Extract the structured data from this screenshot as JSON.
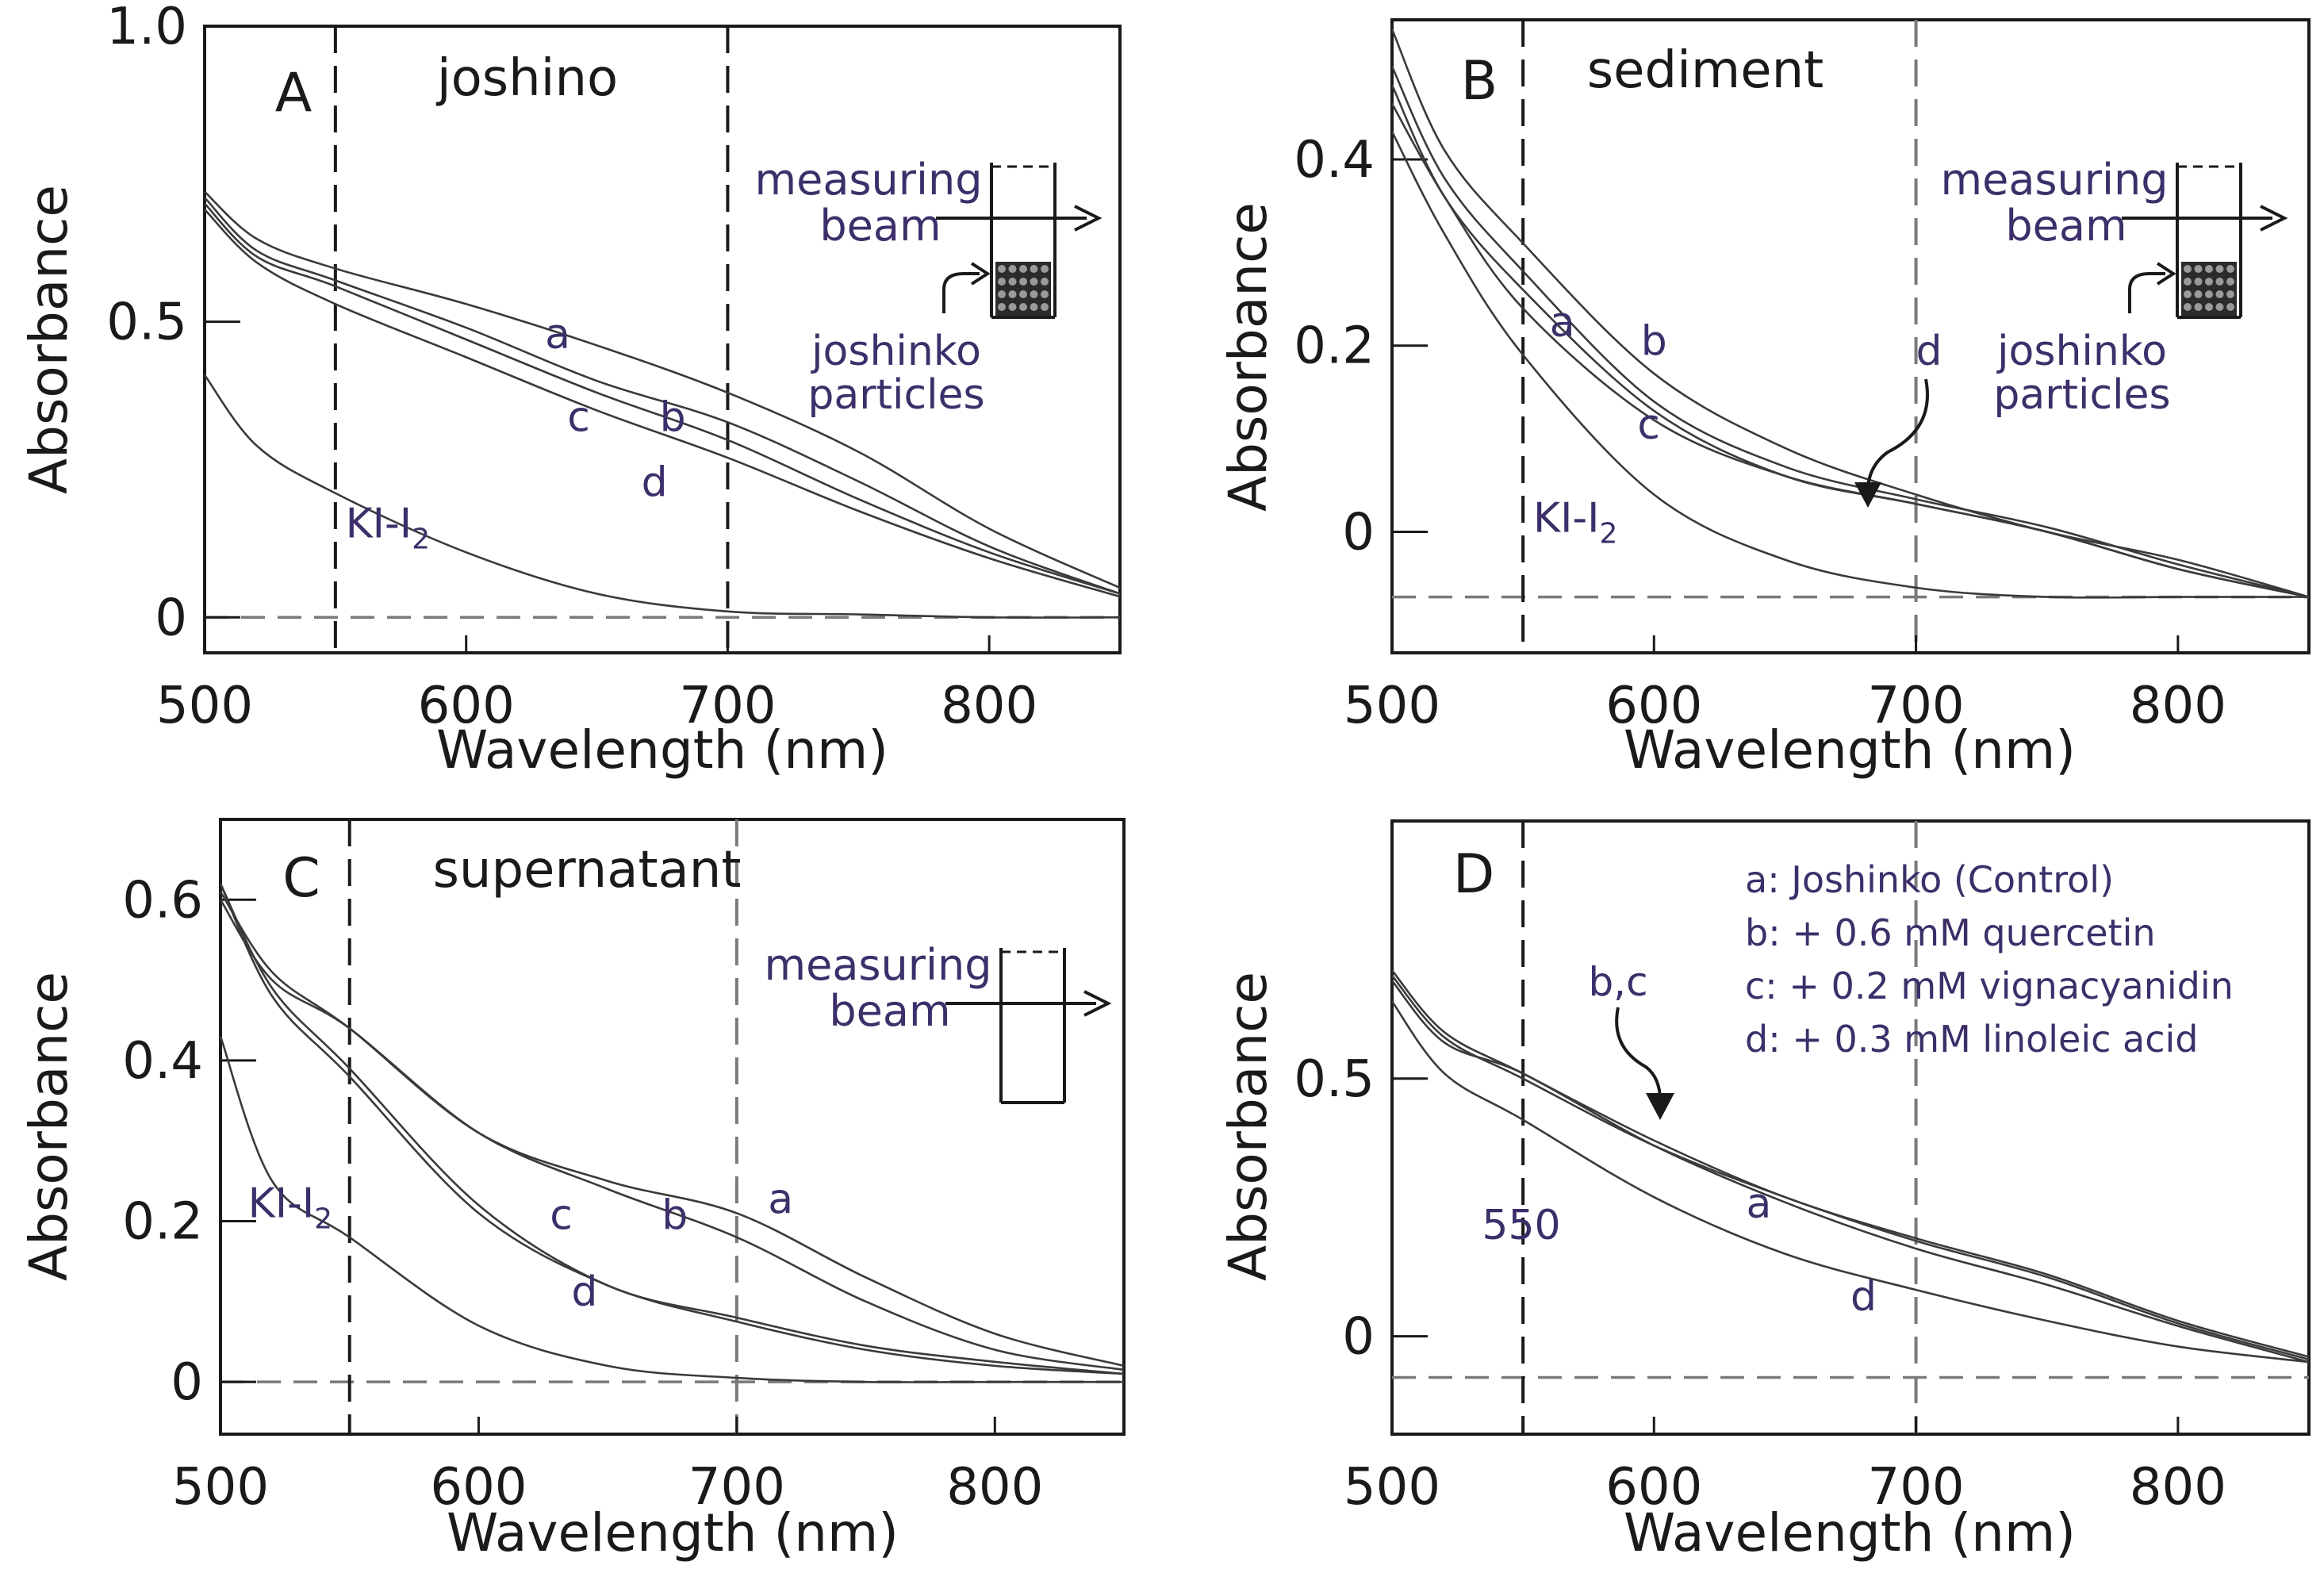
{
  "colors": {
    "ink": "#1a1a1a",
    "curve": "#3a3a3a",
    "annotation": "#3c2f6a",
    "guide": "#7a7a7a"
  },
  "chart_data": [
    {
      "type": "line",
      "panel_letter": "A",
      "title": "joshino",
      "xlabel": "Wavelength (nm)",
      "ylabel": "Absorbance",
      "xlim": [
        500,
        850
      ],
      "ylim": [
        -0.06,
        1.0
      ],
      "xticks": [
        500,
        600,
        700,
        800
      ],
      "yticks": [
        0,
        0.5,
        1.0
      ],
      "ytick_labels": [
        "0",
        "0.5",
        "1.0"
      ],
      "zero_line": 0,
      "vlines": [
        550,
        700
      ],
      "inset": {
        "type": "cuvette-particles",
        "beam_label": [
          "measuring",
          "beam"
        ],
        "particle_label": [
          "joshinko",
          "particles"
        ]
      },
      "series": [
        {
          "name": "a",
          "label": "a",
          "x": [
            500,
            520,
            550,
            600,
            650,
            700,
            750,
            800,
            850
          ],
          "y": [
            0.72,
            0.64,
            0.59,
            0.53,
            0.46,
            0.38,
            0.28,
            0.15,
            0.05
          ]
        },
        {
          "name": "b",
          "label": "b",
          "x": [
            500,
            520,
            550,
            600,
            650,
            700,
            750,
            800,
            850
          ],
          "y": [
            0.71,
            0.62,
            0.57,
            0.49,
            0.4,
            0.33,
            0.23,
            0.12,
            0.04
          ]
        },
        {
          "name": "c",
          "label": "c",
          "x": [
            500,
            520,
            550,
            600,
            650,
            700,
            750,
            800,
            850
          ],
          "y": [
            0.7,
            0.61,
            0.56,
            0.47,
            0.38,
            0.3,
            0.2,
            0.11,
            0.04
          ]
        },
        {
          "name": "d",
          "label": "d",
          "x": [
            500,
            520,
            550,
            600,
            650,
            700,
            750,
            800,
            850
          ],
          "y": [
            0.69,
            0.6,
            0.53,
            0.44,
            0.35,
            0.27,
            0.18,
            0.1,
            0.035
          ]
        },
        {
          "name": "KI-I2",
          "label": "KI-I",
          "label_sub": "2",
          "x": [
            500,
            520,
            550,
            600,
            650,
            700,
            750,
            800,
            850
          ],
          "y": [
            0.41,
            0.29,
            0.21,
            0.11,
            0.04,
            0.01,
            0.005,
            0.0,
            0.0
          ]
        }
      ],
      "labels": [
        {
          "text": "a",
          "x": 635,
          "y": 0.455
        },
        {
          "text": "b",
          "x": 679,
          "y": 0.315
        },
        {
          "text": "c",
          "x": 643,
          "y": 0.315
        },
        {
          "text": "d",
          "x": 672,
          "y": 0.205
        },
        {
          "text": "KI-I",
          "sub": "2",
          "x": 570,
          "y": 0.135
        }
      ]
    },
    {
      "type": "line",
      "panel_letter": "B",
      "title": "sediment",
      "xlabel": "Wavelength (nm)",
      "ylabel": "Absorbance",
      "xlim": [
        500,
        850
      ],
      "ylim": [
        -0.13,
        0.55
      ],
      "xticks": [
        500,
        600,
        700,
        800
      ],
      "yticks": [
        0,
        0.2,
        0.4
      ],
      "ytick_labels": [
        "0",
        "0.2",
        "0.4"
      ],
      "zero_line": -0.07,
      "vlines": [
        550,
        700
      ],
      "inset": {
        "type": "cuvette-particles",
        "beam_label": [
          "measuring",
          "beam"
        ],
        "particle_label": [
          "joshinko",
          "particles"
        ]
      },
      "arrow_label": "d",
      "series": [
        {
          "name": "a",
          "label": "a",
          "x": [
            500,
            520,
            550,
            600,
            650,
            700,
            750,
            800,
            850
          ],
          "y": [
            0.46,
            0.36,
            0.24,
            0.12,
            0.06,
            0.03,
            0.0,
            -0.04,
            -0.07
          ]
        },
        {
          "name": "b",
          "label": "b",
          "x": [
            500,
            520,
            550,
            600,
            650,
            700,
            750,
            800,
            850
          ],
          "y": [
            0.54,
            0.41,
            0.31,
            0.17,
            0.09,
            0.04,
            0.0,
            -0.03,
            -0.07
          ]
        },
        {
          "name": "c",
          "label": "c",
          "x": [
            500,
            520,
            550,
            600,
            650,
            700,
            750,
            800,
            850
          ],
          "y": [
            0.48,
            0.36,
            0.26,
            0.13,
            0.06,
            0.03,
            0.0,
            -0.04,
            -0.07
          ]
        },
        {
          "name": "d",
          "label": "d",
          "x": [
            500,
            520,
            550,
            600,
            650,
            700,
            750,
            800,
            850
          ],
          "y": [
            0.5,
            0.38,
            0.28,
            0.14,
            0.07,
            0.035,
            0.005,
            -0.035,
            -0.07
          ]
        },
        {
          "name": "KI-I2",
          "label": "KI-I",
          "label_sub": "2",
          "x": [
            500,
            520,
            550,
            600,
            650,
            700,
            750,
            800,
            850
          ],
          "y": [
            0.43,
            0.32,
            0.19,
            0.04,
            -0.03,
            -0.06,
            -0.07,
            -0.07,
            -0.07
          ]
        }
      ],
      "labels": [
        {
          "text": "a",
          "x": 565,
          "y": 0.21
        },
        {
          "text": "b",
          "x": 600,
          "y": 0.19
        },
        {
          "text": "c",
          "x": 598,
          "y": 0.1
        },
        {
          "text": "KI-I",
          "sub": "2",
          "x": 570,
          "y": 0.0
        }
      ]
    },
    {
      "type": "line",
      "panel_letter": "C",
      "title": "supernatant",
      "xlabel": "Wavelength (nm)",
      "ylabel": "Absorbance",
      "xlim": [
        500,
        850
      ],
      "ylim": [
        -0.065,
        0.7
      ],
      "xticks": [
        500,
        600,
        700,
        800
      ],
      "yticks": [
        0,
        0.2,
        0.4,
        0.6
      ],
      "ytick_labels": [
        "0",
        "0.2",
        "0.4",
        "0.6"
      ],
      "zero_line": 0,
      "vlines": [
        550,
        700
      ],
      "inset": {
        "type": "cuvette-empty",
        "beam_label": [
          "measuring",
          "beam"
        ]
      },
      "series": [
        {
          "name": "a",
          "label": "a",
          "x": [
            500,
            520,
            550,
            600,
            650,
            700,
            750,
            800,
            850
          ],
          "y": [
            0.61,
            0.51,
            0.44,
            0.31,
            0.25,
            0.21,
            0.13,
            0.06,
            0.02
          ]
        },
        {
          "name": "b",
          "label": "b",
          "x": [
            500,
            520,
            550,
            600,
            650,
            700,
            750,
            800,
            850
          ],
          "y": [
            0.6,
            0.5,
            0.44,
            0.31,
            0.24,
            0.18,
            0.1,
            0.04,
            0.015
          ]
        },
        {
          "name": "c",
          "label": "c",
          "x": [
            500,
            520,
            550,
            600,
            650,
            700,
            750,
            800,
            850
          ],
          "y": [
            0.62,
            0.49,
            0.39,
            0.22,
            0.12,
            0.08,
            0.045,
            0.025,
            0.01
          ]
        },
        {
          "name": "d",
          "label": "d",
          "x": [
            500,
            520,
            550,
            600,
            650,
            700,
            750,
            800,
            850
          ],
          "y": [
            0.62,
            0.48,
            0.38,
            0.21,
            0.12,
            0.075,
            0.04,
            0.02,
            0.01
          ]
        },
        {
          "name": "KI-I2",
          "label": "KI-I",
          "label_sub": "2",
          "x": [
            500,
            520,
            550,
            600,
            650,
            700,
            750,
            800,
            850
          ],
          "y": [
            0.43,
            0.25,
            0.18,
            0.07,
            0.02,
            0.005,
            0.0,
            0.0,
            0.0
          ]
        }
      ],
      "labels": [
        {
          "text": "a",
          "x": 717,
          "y": 0.21
        },
        {
          "text": "b",
          "x": 676,
          "y": 0.19
        },
        {
          "text": "c",
          "x": 632,
          "y": 0.19
        },
        {
          "text": "d",
          "x": 641,
          "y": 0.095
        },
        {
          "text": "KI-I",
          "sub": "2",
          "x": 527,
          "y": 0.205
        }
      ]
    },
    {
      "type": "line",
      "panel_letter": "D",
      "xlabel": "Wavelength (nm)",
      "ylabel": "Absorbance",
      "xlim": [
        500,
        850
      ],
      "ylim": [
        -0.19,
        1.0
      ],
      "xticks": [
        500,
        600,
        700,
        800
      ],
      "yticks": [
        0,
        0.5
      ],
      "ytick_labels": [
        "0",
        "0.5"
      ],
      "zero_line": -0.08,
      "vlines": [
        550,
        700
      ],
      "vline_label": "550",
      "arrow_label": "b,c",
      "legend": [
        "a: Joshinko (Control)",
        "b: + 0.6 mM quercetin",
        "c: + 0.2 mM vignacyanidin",
        "d: + 0.3 mM linoleic acid"
      ],
      "series": [
        {
          "name": "a",
          "label": "a",
          "x": [
            500,
            520,
            550,
            600,
            650,
            700,
            750,
            800,
            850
          ],
          "y": [
            0.69,
            0.57,
            0.51,
            0.37,
            0.26,
            0.17,
            0.1,
            0.02,
            -0.05
          ]
        },
        {
          "name": "b",
          "label": "b",
          "x": [
            500,
            520,
            550,
            600,
            650,
            700,
            750,
            800,
            850
          ],
          "y": [
            0.71,
            0.59,
            0.51,
            0.38,
            0.27,
            0.19,
            0.12,
            0.03,
            -0.04
          ]
        },
        {
          "name": "c",
          "label": "c",
          "x": [
            500,
            520,
            550,
            600,
            650,
            700,
            750,
            800,
            850
          ],
          "y": [
            0.7,
            0.58,
            0.5,
            0.37,
            0.27,
            0.185,
            0.115,
            0.025,
            -0.045
          ]
        },
        {
          "name": "d",
          "label": "d",
          "x": [
            500,
            520,
            550,
            600,
            650,
            700,
            750,
            800,
            850
          ],
          "y": [
            0.65,
            0.51,
            0.42,
            0.27,
            0.16,
            0.09,
            0.03,
            -0.02,
            -0.05
          ]
        }
      ],
      "labels": [
        {
          "text": "a",
          "x": 640,
          "y": 0.23
        },
        {
          "text": "d",
          "x": 680,
          "y": 0.05
        }
      ]
    }
  ]
}
